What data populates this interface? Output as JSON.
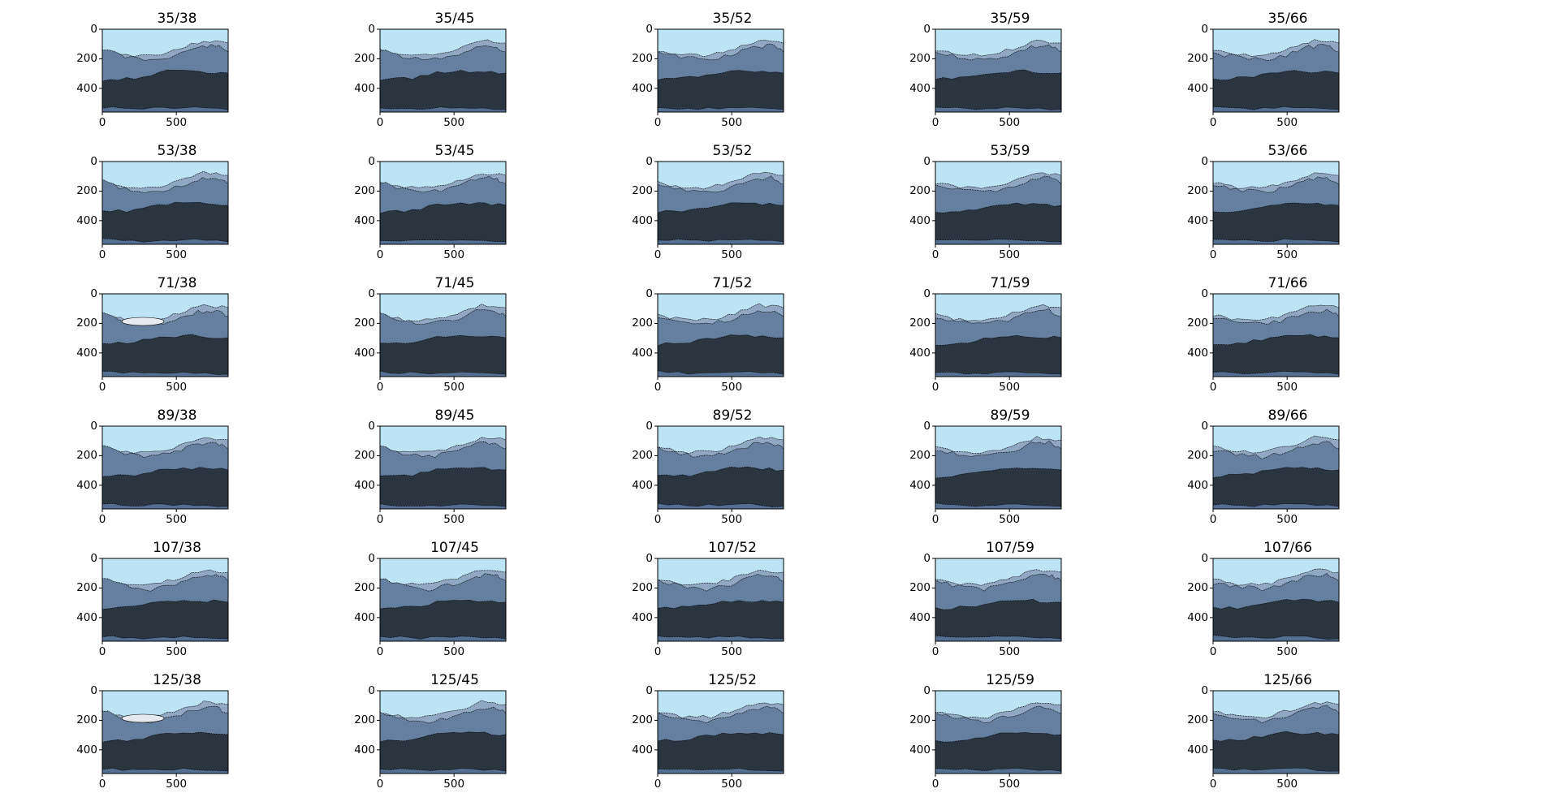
{
  "figure": {
    "colors": {
      "sky": "#bde4f4",
      "mountain_far": "#90a8c3",
      "mountain_mid": "#647f9f",
      "forest": "#2a3540",
      "shore": "#556f93",
      "outline": "#000000",
      "cloud": "#e6e9ee"
    }
  },
  "chart_data": {
    "type": "image-grid",
    "rows": 6,
    "cols": 5,
    "x_ticks": [
      0,
      500
    ],
    "y_ticks": [
      0,
      200,
      400
    ],
    "xlim": [
      0,
      850
    ],
    "ylim": [
      560,
      0
    ],
    "row_values": [
      35,
      53,
      71,
      89,
      107,
      125
    ],
    "col_values": [
      38,
      45,
      52,
      59,
      66
    ],
    "titles": [
      [
        "35/38",
        "35/45",
        "35/52",
        "35/59",
        "35/66"
      ],
      [
        "53/38",
        "53/45",
        "53/52",
        "53/59",
        "53/66"
      ],
      [
        "71/38",
        "71/45",
        "71/52",
        "71/59",
        "71/66"
      ],
      [
        "89/38",
        "89/45",
        "89/52",
        "89/59",
        "89/66"
      ],
      [
        "107/38",
        "107/45",
        "107/52",
        "107/59",
        "107/66"
      ],
      [
        "125/38",
        "125/45",
        "125/52",
        "125/59",
        "125/66"
      ]
    ]
  }
}
